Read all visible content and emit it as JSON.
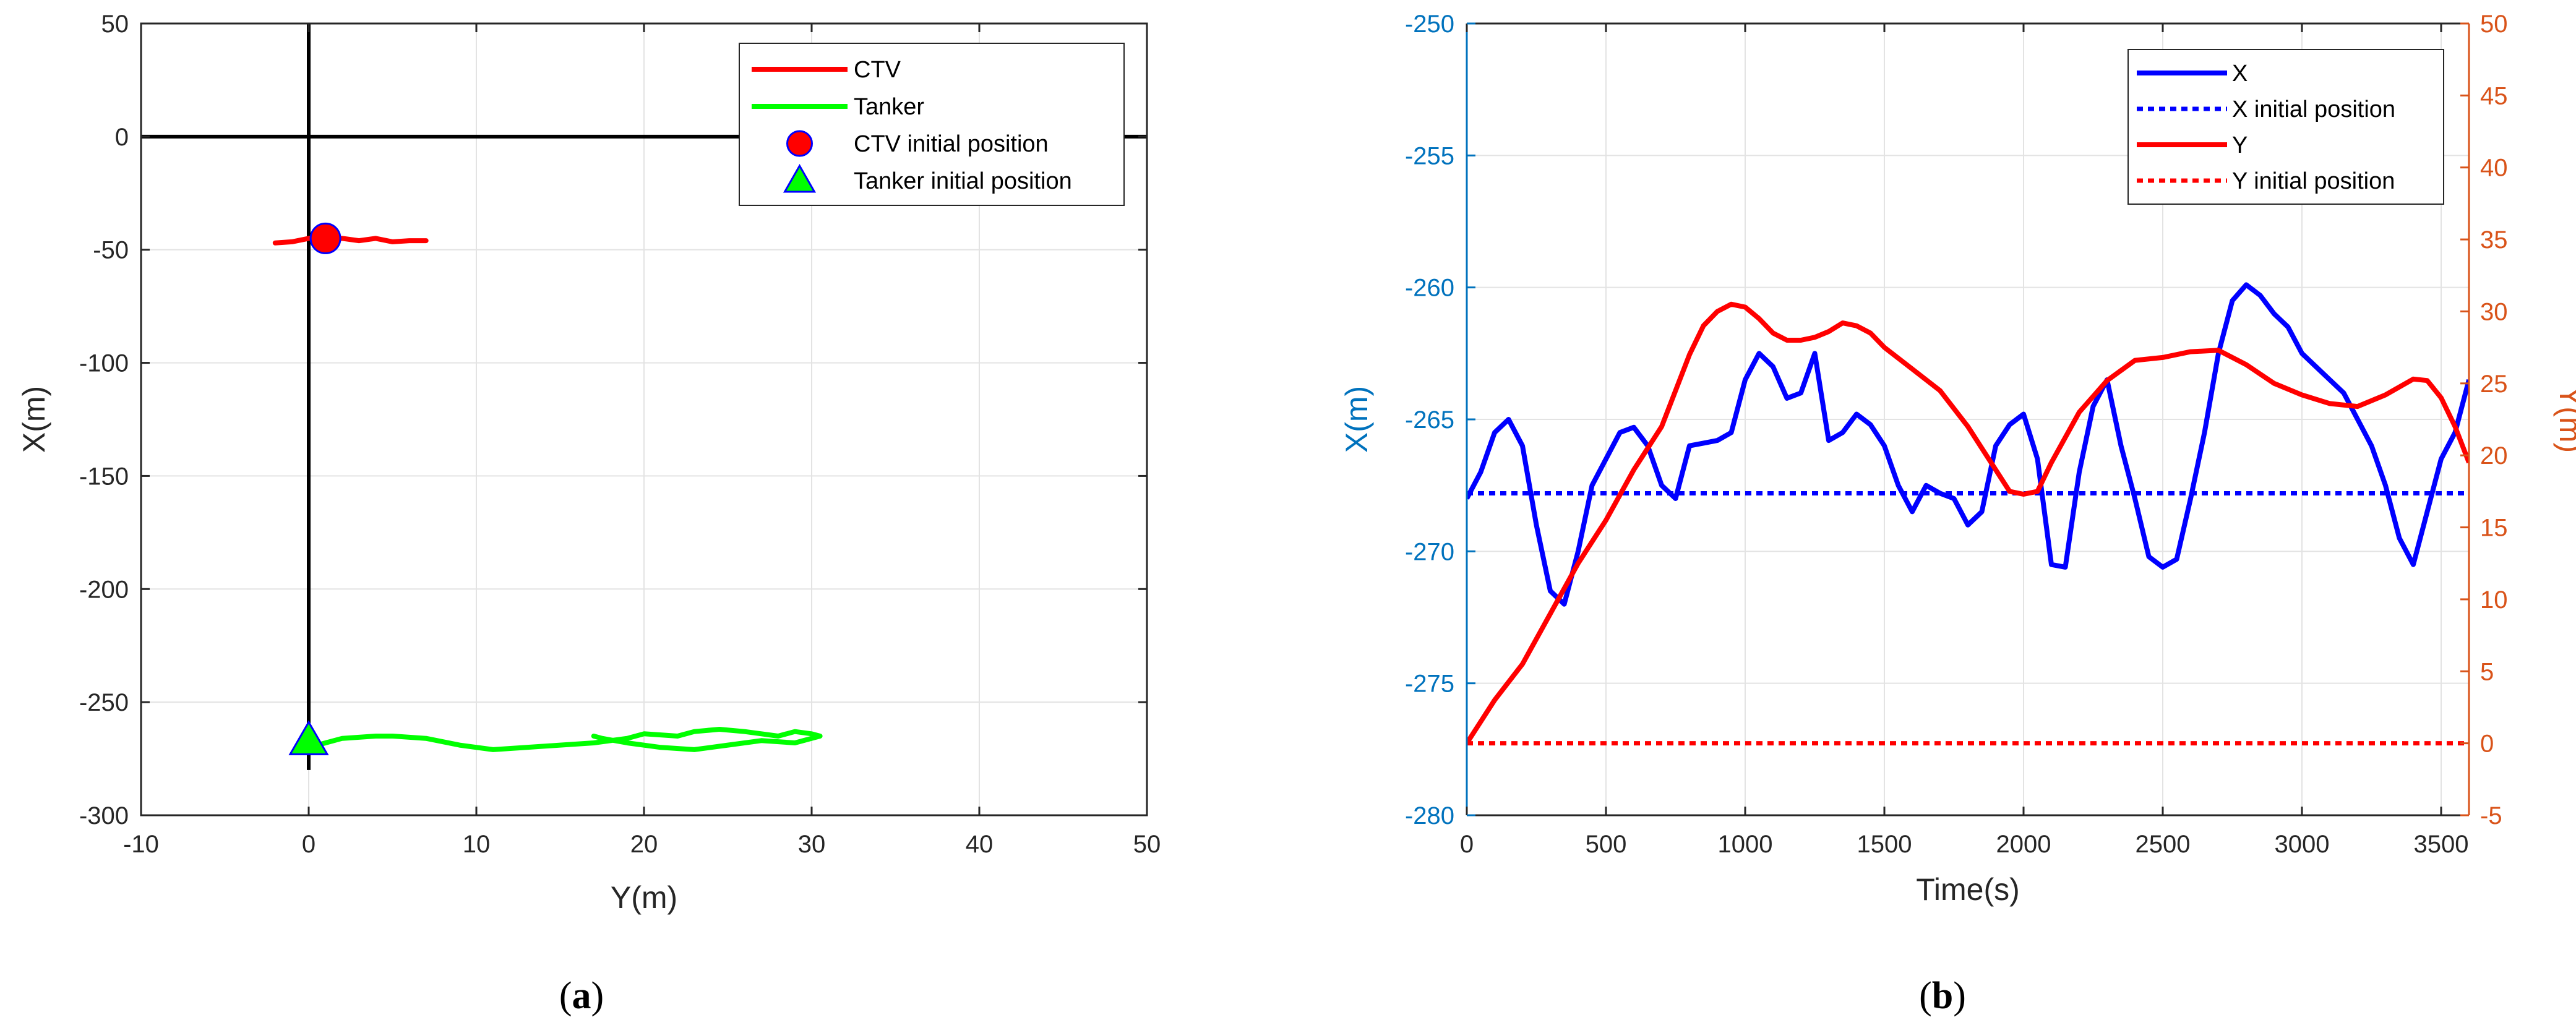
{
  "chart_data": [
    {
      "type": "line",
      "panel_label": "(a)",
      "panel_letter": "a",
      "xlabel": "Y(m)",
      "ylabel": "X(m)",
      "xlim": [
        -10,
        50
      ],
      "ylim": [
        -300,
        50
      ],
      "xticks": [
        -10,
        0,
        10,
        20,
        30,
        40,
        50
      ],
      "yticks": [
        50,
        0,
        -50,
        -100,
        -150,
        -200,
        -250,
        -300
      ],
      "grid": true,
      "legend_position": "top-right",
      "reference_lines": {
        "x": 0,
        "y": 0,
        "color": "#000000"
      },
      "series": [
        {
          "name": "CTV",
          "color": "#ff0000",
          "style": "line",
          "x": [
            -2.0,
            -1.0,
            0.0,
            0.5,
            1.0,
            2.0,
            3.0,
            4.0,
            5.0,
            6.0,
            7.0
          ],
          "y": [
            -47,
            -46.5,
            -45,
            -44.5,
            -45.5,
            -45,
            -46,
            -45,
            -46.5,
            -46,
            -46
          ]
        },
        {
          "name": "Tanker",
          "color": "#00ff00",
          "style": "line",
          "x": [
            0,
            1.0,
            2.0,
            4.0,
            5.0,
            7.0,
            9.0,
            11.0,
            13.0,
            15.0,
            17.0,
            19.0,
            20.0,
            22.0,
            23.0,
            24.5,
            26.0,
            27.0,
            28.0,
            29.0,
            30.0,
            30.5,
            29.0,
            27.0,
            25.0,
            23.0,
            21.0,
            19.0,
            17.5,
            17.0
          ],
          "y": [
            -270,
            -268,
            -266,
            -265,
            -265,
            -266,
            -269,
            -271,
            -270,
            -269,
            -268,
            -266,
            -264,
            -265,
            -263,
            -262,
            -263,
            -264,
            -265,
            -263,
            -264,
            -265,
            -268,
            -267,
            -269,
            -271,
            -270,
            -268,
            -266,
            -265
          ]
        },
        {
          "name": "CTV initial position",
          "color": "#ff0000",
          "edge": "#0000ff",
          "style": "circle",
          "x": [
            1
          ],
          "y": [
            -45
          ]
        },
        {
          "name": "Tanker initial position",
          "color": "#00ff00",
          "edge": "#0000ff",
          "style": "triangle",
          "x": [
            0
          ],
          "y": [
            -267
          ]
        }
      ]
    },
    {
      "type": "line",
      "panel_label": "(b)",
      "panel_letter": "b",
      "xlabel": "Time(s)",
      "ylabel": "X(m)",
      "y2label": "Y(m)",
      "xlim": [
        0,
        3600
      ],
      "ylim": [
        -280,
        -250
      ],
      "y2lim": [
        -5,
        50
      ],
      "xticks": [
        0,
        500,
        1000,
        1500,
        2000,
        2500,
        3000,
        3500
      ],
      "yticks": [
        -250,
        -255,
        -260,
        -265,
        -270,
        -275,
        -280
      ],
      "y2ticks": [
        50,
        45,
        40,
        35,
        30,
        25,
        20,
        15,
        10,
        5,
        0,
        -5
      ],
      "grid": true,
      "legend_position": "top-right",
      "series": [
        {
          "name": "X",
          "axis": "left",
          "color": "#0000ff",
          "style": "line",
          "x": [
            0,
            50,
            100,
            150,
            200,
            250,
            300,
            350,
            400,
            450,
            500,
            550,
            600,
            650,
            700,
            750,
            800,
            850,
            900,
            950,
            1000,
            1050,
            1100,
            1150,
            1200,
            1250,
            1300,
            1350,
            1400,
            1450,
            1500,
            1550,
            1600,
            1650,
            1700,
            1750,
            1800,
            1850,
            1900,
            1950,
            2000,
            2050,
            2100,
            2150,
            2200,
            2250,
            2300,
            2350,
            2400,
            2450,
            2500,
            2550,
            2600,
            2650,
            2700,
            2750,
            2800,
            2850,
            2900,
            2950,
            3000,
            3050,
            3100,
            3150,
            3200,
            3250,
            3300,
            3350,
            3400,
            3450,
            3500,
            3550,
            3600
          ],
          "y": [
            -268,
            -267,
            -265.5,
            -265,
            -266,
            -269,
            -271.5,
            -272,
            -270,
            -267.5,
            -266.5,
            -265.5,
            -265.3,
            -266,
            -267.5,
            -268,
            -266,
            -265.9,
            -265.8,
            -265.5,
            -263.5,
            -262.5,
            -263,
            -264.2,
            -264,
            -262.5,
            -265.8,
            -265.5,
            -264.8,
            -265.2,
            -266,
            -267.5,
            -268.5,
            -267.5,
            -267.8,
            -268,
            -269,
            -268.5,
            -266,
            -265.2,
            -264.8,
            -266.5,
            -270.5,
            -270.6,
            -267,
            -264.5,
            -263.5,
            -266,
            -268,
            -270.2,
            -270.6,
            -270.3,
            -268,
            -265.5,
            -262.5,
            -260.5,
            -259.9,
            -260.3,
            -261,
            -261.5,
            -262.5,
            -263,
            -263.5,
            -264,
            -265,
            -266,
            -267.5,
            -269.5,
            -270.5,
            -268.5,
            -266.5,
            -265.5,
            -263.5
          ]
        },
        {
          "name": "X initial position",
          "axis": "left",
          "color": "#0000ff",
          "style": "dotted",
          "x": [
            0,
            3600
          ],
          "y": [
            -267.8,
            -267.8
          ]
        },
        {
          "name": "Y",
          "axis": "right",
          "color": "#ff0000",
          "style": "line",
          "x": [
            0,
            100,
            200,
            300,
            400,
            500,
            600,
            700,
            800,
            850,
            900,
            950,
            1000,
            1050,
            1100,
            1150,
            1200,
            1250,
            1300,
            1350,
            1400,
            1450,
            1500,
            1600,
            1700,
            1800,
            1900,
            1950,
            2000,
            2050,
            2100,
            2200,
            2300,
            2400,
            2500,
            2600,
            2700,
            2800,
            2900,
            3000,
            3100,
            3200,
            3300,
            3400,
            3450,
            3500,
            3550,
            3600
          ],
          "y": [
            0,
            3,
            5.5,
            9,
            12.5,
            15.5,
            19,
            22,
            27,
            29,
            30,
            30.5,
            30.3,
            29.5,
            28.5,
            28,
            28,
            28.2,
            28.6,
            29.2,
            29,
            28.5,
            27.5,
            26,
            24.5,
            22,
            19,
            17.5,
            17.3,
            17.5,
            19.5,
            23,
            25.2,
            26.6,
            26.8,
            27.2,
            27.3,
            26.3,
            25,
            24.2,
            23.6,
            23.4,
            24.2,
            25.3,
            25.2,
            24,
            22,
            19.5
          ]
        },
        {
          "name": "Y initial position",
          "axis": "right",
          "color": "#ff0000",
          "style": "dotted",
          "x": [
            0,
            3600
          ],
          "y": [
            0,
            0
          ]
        }
      ]
    }
  ]
}
